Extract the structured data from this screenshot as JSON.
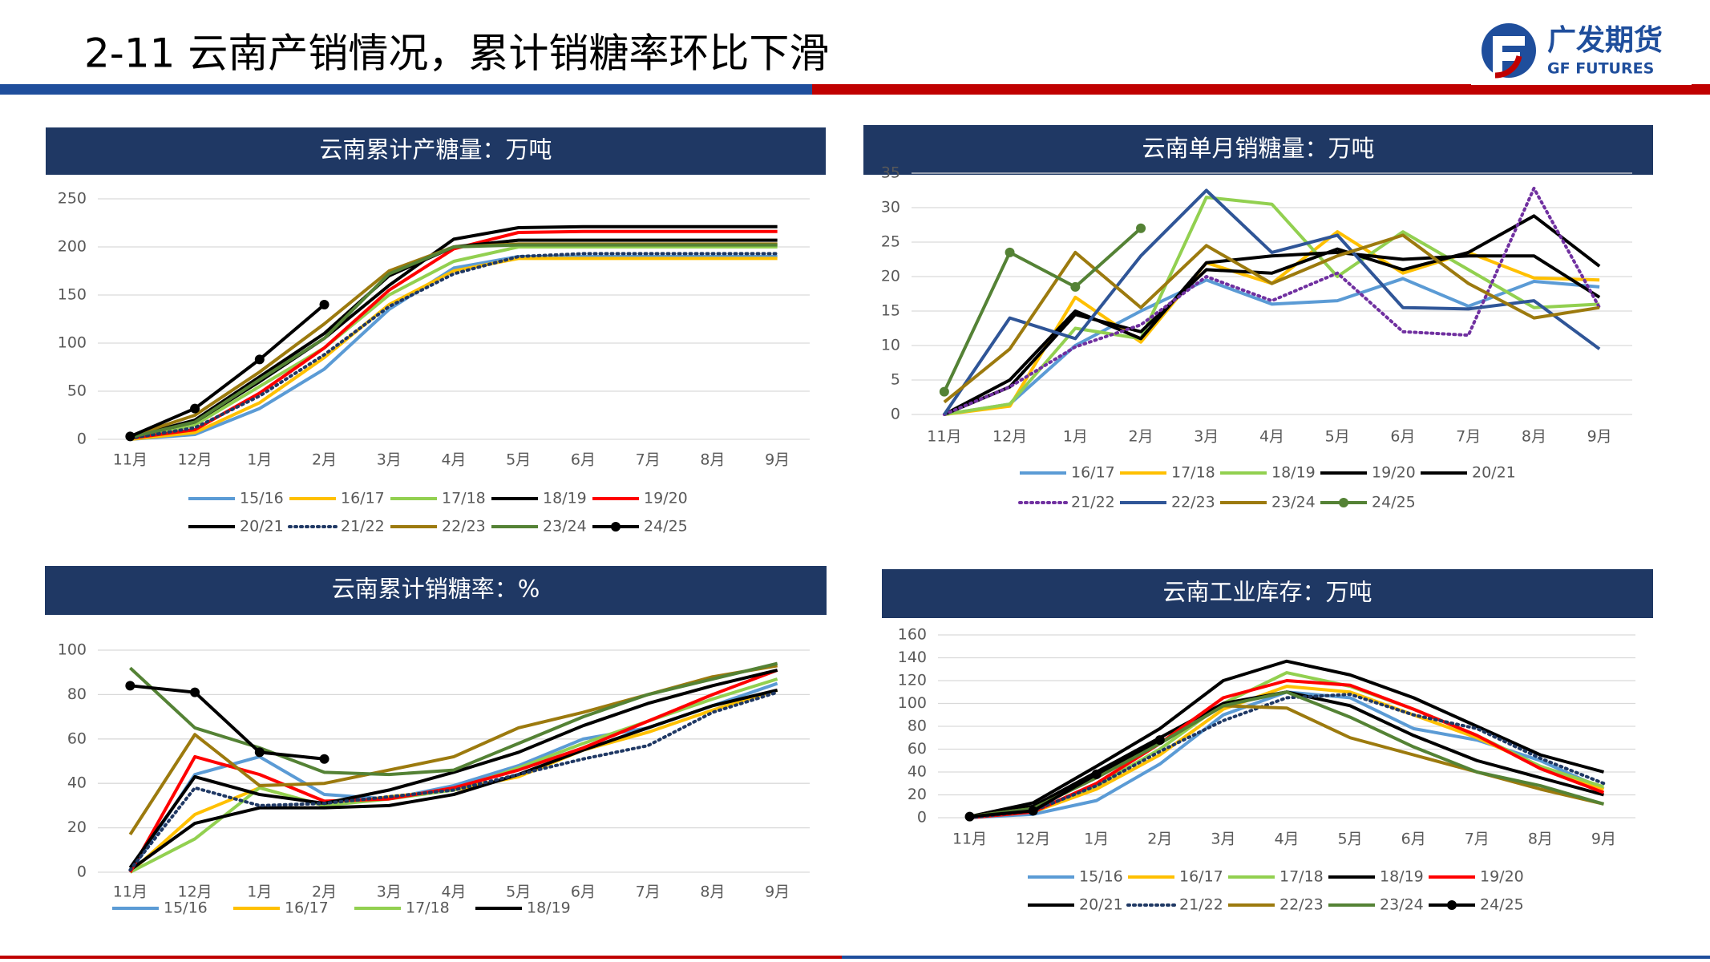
{
  "header": {
    "title": "2-11 云南产销情况，累计销糖率环比下滑",
    "logo_cn": "广发期货",
    "logo_en": "GF FUTURES"
  },
  "chart_data": [
    {
      "type": "line",
      "title": "云南累计产糖量：万吨",
      "categories": [
        "11月",
        "12月",
        "1月",
        "2月",
        "3月",
        "4月",
        "5月",
        "6月",
        "7月",
        "8月",
        "9月"
      ],
      "ylim": [
        0,
        250
      ],
      "yticks": [
        0,
        50,
        100,
        150,
        200,
        250
      ],
      "grid": true,
      "series": [
        {
          "name": "15/16",
          "color": "#5b9bd5",
          "values": [
            0,
            5,
            32,
            73,
            135,
            178,
            190,
            190,
            190,
            190,
            190
          ]
        },
        {
          "name": "16/17",
          "color": "#ffc000",
          "values": [
            0,
            7,
            38,
            85,
            140,
            175,
            188,
            188,
            188,
            188,
            188
          ]
        },
        {
          "name": "17/18",
          "color": "#92d050",
          "values": [
            1,
            15,
            55,
            95,
            150,
            185,
            200,
            200,
            200,
            200,
            200
          ]
        },
        {
          "name": "18/19",
          "color": "#000000",
          "values": [
            2,
            18,
            60,
            105,
            160,
            208,
            220,
            221,
            221,
            221,
            221
          ]
        },
        {
          "name": "19/20",
          "color": "#ff0000",
          "values": [
            1,
            10,
            48,
            95,
            155,
            198,
            215,
            216,
            216,
            216,
            216
          ]
        },
        {
          "name": "20/21",
          "color": "#000000",
          "values": [
            2,
            20,
            65,
            110,
            170,
            200,
            207,
            207,
            207,
            207,
            207
          ]
        },
        {
          "name": "21/22",
          "color": "#1f3864",
          "style": "dotted",
          "values": [
            1,
            12,
            45,
            88,
            138,
            172,
            190,
            193,
            193,
            193,
            193
          ]
        },
        {
          "name": "22/23",
          "color": "#9c7a0e",
          "values": [
            3,
            25,
            70,
            120,
            175,
            200,
            203,
            203,
            203,
            203,
            203
          ]
        },
        {
          "name": "23/24",
          "color": "#548235",
          "values": [
            2,
            18,
            62,
            105,
            172,
            200,
            202,
            202,
            202,
            202,
            202
          ]
        },
        {
          "name": "24/25",
          "color": "#000000",
          "marker": true,
          "values": [
            3,
            32,
            83,
            140,
            null,
            null,
            null,
            null,
            null,
            null,
            null
          ]
        }
      ]
    },
    {
      "type": "line",
      "title": "云南单月销糖量：万吨",
      "categories": [
        "11月",
        "12月",
        "1月",
        "2月",
        "3月",
        "4月",
        "5月",
        "6月",
        "7月",
        "8月",
        "9月"
      ],
      "ylim": [
        0,
        35
      ],
      "yticks": [
        0,
        5,
        10,
        15,
        20,
        25,
        30,
        35
      ],
      "grid": true,
      "series": [
        {
          "name": "16/17",
          "color": "#5b9bd5",
          "values": [
            0,
            1.5,
            10,
            15,
            19.5,
            16,
            16.5,
            19.7,
            15.7,
            19.3,
            18.5
          ]
        },
        {
          "name": "17/18",
          "color": "#ffc000",
          "values": [
            0,
            1.2,
            17,
            10.5,
            22,
            19,
            26.5,
            20.5,
            23.5,
            19.8,
            19.5
          ]
        },
        {
          "name": "18/19",
          "color": "#92d050",
          "values": [
            0,
            1.5,
            12.5,
            11,
            31.5,
            30.5,
            20,
            26.5,
            21,
            15.5,
            16
          ]
        },
        {
          "name": "19/20",
          "color": "#000000",
          "values": [
            0,
            5,
            15,
            11,
            22,
            23,
            23.5,
            22.5,
            23,
            23,
            17
          ]
        },
        {
          "name": "20/21",
          "color": "#000000",
          "values": [
            0,
            4,
            14.5,
            12,
            21,
            20.5,
            24,
            21,
            23.5,
            28.8,
            21.5
          ]
        },
        {
          "name": "21/22",
          "color": "#7030a0",
          "style": "dotted",
          "values": [
            0,
            4,
            9.8,
            13,
            20,
            16.5,
            20.5,
            12,
            11.5,
            32.8,
            15.5
          ]
        },
        {
          "name": "22/23",
          "color": "#2f5597",
          "values": [
            0,
            14,
            11,
            23,
            32.5,
            23.5,
            26,
            15.5,
            15.3,
            16.5,
            9.5
          ]
        },
        {
          "name": "23/24",
          "color": "#9c7a0e",
          "values": [
            1.8,
            9.5,
            23.5,
            15.5,
            24.5,
            19,
            23,
            26,
            19,
            14,
            15.5
          ]
        },
        {
          "name": "24/25",
          "color": "#548235",
          "marker": true,
          "values": [
            3.3,
            23.5,
            18.5,
            27,
            null,
            null,
            null,
            null,
            null,
            null,
            null
          ]
        }
      ]
    },
    {
      "type": "line",
      "title": "云南累计销糖率：%",
      "categories": [
        "11月",
        "12月",
        "1月",
        "2月",
        "3月",
        "4月",
        "5月",
        "6月",
        "7月",
        "8月",
        "9月"
      ],
      "ylim": [
        0,
        100
      ],
      "yticks": [
        0,
        20,
        40,
        60,
        80,
        100
      ],
      "grid": true,
      "series": [
        {
          "name": "15/16",
          "color": "#5b9bd5",
          "values": [
            0,
            44,
            52,
            35,
            33,
            39,
            48,
            60,
            65,
            75,
            85
          ]
        },
        {
          "name": "16/17",
          "color": "#ffc000",
          "values": [
            0,
            26,
            38,
            30,
            34,
            37,
            43,
            55,
            63,
            73,
            82
          ]
        },
        {
          "name": "17/18",
          "color": "#92d050",
          "values": [
            0,
            15,
            38,
            30,
            33,
            37,
            47,
            58,
            68,
            78,
            87
          ]
        },
        {
          "name": "18/19",
          "color": "#000000",
          "values": [
            1,
            22,
            29,
            29,
            30,
            35,
            44,
            55,
            65,
            75,
            82
          ]
        },
        {
          "color": "#ff0000",
          "values": [
            0,
            52,
            44,
            32,
            33,
            38,
            46,
            56,
            68,
            80,
            91
          ]
        },
        {
          "color": "#000000",
          "values": [
            2,
            43,
            35,
            31,
            37,
            45,
            54,
            66,
            76,
            84,
            91
          ]
        },
        {
          "color": "#1f3864",
          "style": "dotted",
          "values": [
            1,
            38,
            30,
            31,
            34,
            37,
            44,
            51,
            57,
            72,
            81
          ]
        },
        {
          "color": "#9c7a0e",
          "values": [
            17,
            62,
            39,
            40,
            46,
            52,
            65,
            72,
            80,
            88,
            93
          ]
        },
        {
          "color": "#548235",
          "values": [
            92,
            65,
            56,
            45,
            44,
            46,
            58,
            70,
            80,
            87,
            94
          ]
        },
        {
          "color": "#000000",
          "marker": true,
          "values": [
            84,
            81,
            54,
            51,
            null,
            null,
            null,
            null,
            null,
            null,
            null
          ]
        }
      ]
    },
    {
      "type": "line",
      "title": "云南工业库存：万吨",
      "categories": [
        "11月",
        "12月",
        "1月",
        "2月",
        "3月",
        "4月",
        "5月",
        "6月",
        "7月",
        "8月",
        "9月"
      ],
      "ylim": [
        0,
        160
      ],
      "yticks": [
        0,
        20,
        40,
        60,
        80,
        100,
        120,
        140,
        160
      ],
      "grid": true,
      "series": [
        {
          "name": "15/16",
          "color": "#5b9bd5",
          "values": [
            0,
            3,
            15,
            47,
            90,
            110,
            105,
            78,
            68,
            50,
            25
          ]
        },
        {
          "name": "16/17",
          "color": "#ffc000",
          "values": [
            0,
            5,
            25,
            55,
            95,
            115,
            110,
            90,
            70,
            45,
            25
          ]
        },
        {
          "name": "17/18",
          "color": "#92d050",
          "values": [
            0,
            6,
            28,
            60,
            100,
            127,
            115,
            95,
            72,
            45,
            27
          ]
        },
        {
          "name": "18/19",
          "color": "#000000",
          "values": [
            1,
            10,
            40,
            70,
            100,
            110,
            98,
            72,
            50,
            35,
            20
          ]
        },
        {
          "name": "19/20",
          "color": "#ff0000",
          "values": [
            0,
            5,
            30,
            65,
            105,
            120,
            116,
            95,
            72,
            43,
            22
          ]
        },
        {
          "name": "20/21",
          "color": "#000000",
          "values": [
            1,
            13,
            45,
            78,
            120,
            137,
            125,
            105,
            80,
            55,
            40
          ]
        },
        {
          "name": "21/22",
          "color": "#1f3864",
          "style": "dotted",
          "values": [
            0,
            6,
            28,
            58,
            85,
            105,
            108,
            90,
            78,
            52,
            30
          ]
        },
        {
          "name": "22/23",
          "color": "#9c7a0e",
          "values": [
            1,
            8,
            35,
            65,
            98,
            96,
            70,
            55,
            40,
            25,
            12
          ]
        },
        {
          "name": "23/24",
          "color": "#548235",
          "values": [
            1,
            8,
            35,
            65,
            98,
            110,
            88,
            62,
            40,
            28,
            12
          ]
        },
        {
          "name": "24/25",
          "color": "#000000",
          "marker": true,
          "values": [
            1,
            6,
            38,
            68,
            null,
            null,
            null,
            null,
            null,
            null,
            null
          ]
        }
      ]
    }
  ]
}
